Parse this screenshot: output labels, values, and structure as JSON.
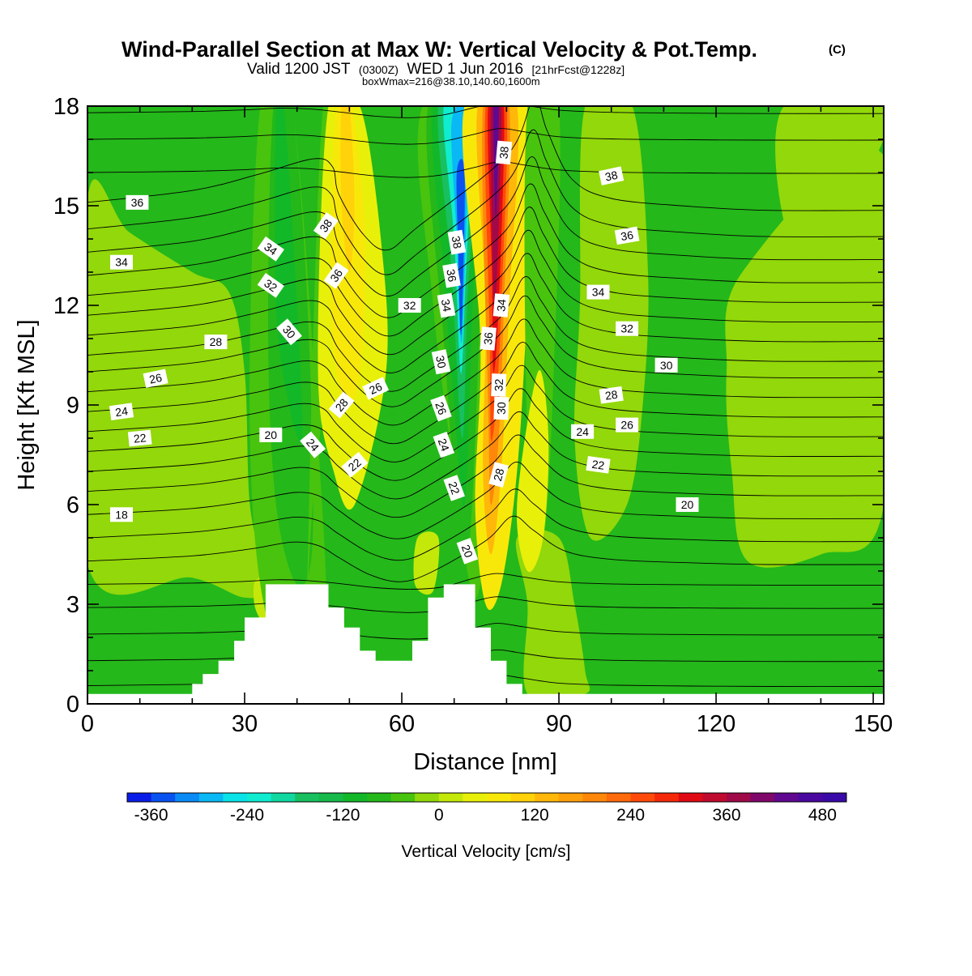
{
  "chart_data": {
    "type": "heatmap",
    "title": "Wind-Parallel Section at Max W: Vertical Velocity & Pot.Temp.",
    "title_mark": "(C)",
    "subtitle_parts": [
      "Valid 1200 JST",
      "(0300Z)",
      "WED 1 Jun 2016",
      "[21hrFcst@1228z]"
    ],
    "subtitle2": "boxWmax=216@38.10,140.60,1600m",
    "xlabel": "Distance [nm]",
    "ylabel": "Height [Kft MSL]",
    "xlim": [
      0,
      152
    ],
    "ylim": [
      0,
      18
    ],
    "x_ticks": [
      0,
      30,
      60,
      90,
      120,
      150
    ],
    "y_ticks": [
      0,
      3,
      6,
      9,
      12,
      15,
      18
    ],
    "colorbar": {
      "label": "Vertical Velocity [cm/s]",
      "tick_values": [
        -360,
        -240,
        -120,
        0,
        120,
        240,
        360,
        480
      ],
      "tick_labels": [
        "-360",
        "-240",
        "-120",
        "0",
        "120",
        "240",
        "360",
        "480"
      ],
      "levels": [
        -390,
        -360,
        -330,
        -300,
        -270,
        -240,
        -210,
        -180,
        -150,
        -120,
        -90,
        -60,
        -30,
        0,
        30,
        60,
        90,
        120,
        150,
        180,
        210,
        240,
        270,
        300,
        330,
        360,
        390,
        420,
        450,
        480,
        510
      ],
      "colors": [
        "#0a1de8",
        "#0a52f0",
        "#0a8af5",
        "#0ab8f5",
        "#0ae3e8",
        "#10ecd0",
        "#10d8a0",
        "#18c060",
        "#16b94a",
        "#12b828",
        "#24b81a",
        "#48c40e",
        "#92d80a",
        "#c4e80a",
        "#e8f00a",
        "#f8e80a",
        "#ffd20a",
        "#ffb80a",
        "#ff9f0a",
        "#ff870a",
        "#ff6a0a",
        "#ff4a0a",
        "#f5280a",
        "#e00a14",
        "#c00a30",
        "#a00a48",
        "#80086a",
        "#600890",
        "#4a08a0",
        "#3a0aa8"
      ]
    },
    "terrain_kft": [
      [
        0,
        0.3
      ],
      [
        20,
        0.3
      ],
      [
        20,
        0.6
      ],
      [
        22,
        0.6
      ],
      [
        22,
        0.9
      ],
      [
        25,
        0.9
      ],
      [
        25,
        1.3
      ],
      [
        28,
        1.3
      ],
      [
        28,
        1.9
      ],
      [
        30,
        1.9
      ],
      [
        30,
        2.6
      ],
      [
        34,
        2.6
      ],
      [
        34,
        3.6
      ],
      [
        46,
        3.6
      ],
      [
        46,
        2.9
      ],
      [
        49,
        2.9
      ],
      [
        49,
        2.3
      ],
      [
        52,
        2.3
      ],
      [
        52,
        1.6
      ],
      [
        55,
        1.6
      ],
      [
        55,
        1.3
      ],
      [
        62,
        1.3
      ],
      [
        62,
        1.9
      ],
      [
        65,
        1.9
      ],
      [
        65,
        3.2
      ],
      [
        68,
        3.2
      ],
      [
        68,
        3.6
      ],
      [
        74,
        3.6
      ],
      [
        74,
        2.3
      ],
      [
        77,
        2.3
      ],
      [
        77,
        1.3
      ],
      [
        80,
        1.3
      ],
      [
        80,
        0.6
      ],
      [
        83,
        0.6
      ],
      [
        83,
        0.3
      ],
      [
        152,
        0.3
      ]
    ],
    "ww_bands": [
      {
        "level": "-60",
        "points": [
          [
            33,
            18
          ],
          [
            39,
            18
          ],
          [
            44,
            8
          ],
          [
            45,
            1.6
          ],
          [
            35,
            2.2
          ],
          [
            31,
            8
          ]
        ]
      },
      {
        "level": "-90",
        "points": [
          [
            35.5,
            18
          ],
          [
            39,
            18
          ],
          [
            42,
            12
          ],
          [
            43,
            5
          ],
          [
            40,
            3.6
          ],
          [
            36,
            6
          ],
          [
            34.5,
            11
          ]
        ]
      },
      {
        "level": "-120",
        "points": [
          [
            36,
            18
          ],
          [
            37.5,
            18
          ],
          [
            40,
            12
          ],
          [
            41,
            8
          ],
          [
            38.5,
            9
          ],
          [
            36,
            12
          ]
        ]
      },
      {
        "level": "-60",
        "points": [
          [
            45,
            18
          ],
          [
            51,
            18
          ],
          [
            47,
            12
          ],
          [
            45,
            9
          ],
          [
            43,
            6
          ],
          [
            42,
            4
          ]
        ]
      },
      {
        "level": "30",
        "points": [
          [
            46,
            18
          ],
          [
            52,
            18
          ],
          [
            56,
            14
          ],
          [
            57,
            10
          ],
          [
            51,
            6
          ],
          [
            47,
            7
          ],
          [
            44,
            10
          ]
        ]
      },
      {
        "level": "60",
        "points": [
          [
            47.5,
            18
          ],
          [
            50.5,
            18
          ],
          [
            53,
            14
          ],
          [
            52,
            10
          ],
          [
            49,
            9
          ],
          [
            46.5,
            12
          ]
        ]
      },
      {
        "level": "90",
        "points": [
          [
            48.5,
            18
          ],
          [
            50,
            18
          ],
          [
            51,
            15
          ],
          [
            50,
            13
          ],
          [
            48.5,
            15
          ]
        ]
      },
      {
        "level": "-60",
        "points": [
          [
            64,
            18
          ],
          [
            82,
            18
          ],
          [
            79,
            12
          ],
          [
            77,
            7
          ],
          [
            75,
            3.6
          ],
          [
            73,
            3.6
          ],
          [
            70,
            7
          ],
          [
            66,
            12
          ]
        ]
      },
      {
        "level": "-90",
        "points": [
          [
            65,
            18
          ],
          [
            76,
            18
          ],
          [
            75,
            12
          ],
          [
            73,
            5
          ],
          [
            71,
            5
          ],
          [
            68,
            11
          ]
        ]
      },
      {
        "level": "-120",
        "points": [
          [
            66,
            18
          ],
          [
            75,
            18
          ],
          [
            73.5,
            12
          ],
          [
            72,
            6
          ],
          [
            70,
            9
          ],
          [
            68,
            13
          ]
        ]
      },
      {
        "level": "-180",
        "points": [
          [
            67,
            18
          ],
          [
            74,
            18
          ],
          [
            72.5,
            12
          ],
          [
            71.5,
            8
          ],
          [
            69.5,
            13
          ]
        ]
      },
      {
        "level": "-240",
        "points": [
          [
            68,
            18
          ],
          [
            73,
            18
          ],
          [
            72,
            12
          ],
          [
            71.2,
            10
          ],
          [
            70,
            14
          ]
        ]
      },
      {
        "level": "-300",
        "points": [
          [
            69.5,
            17.5
          ],
          [
            72.5,
            17.5
          ],
          [
            71.8,
            12
          ],
          [
            71.2,
            11
          ],
          [
            70.5,
            14
          ]
        ]
      },
      {
        "level": "-360",
        "points": [
          [
            70.5,
            16
          ],
          [
            72,
            16
          ],
          [
            71.6,
            12
          ],
          [
            71.2,
            11.2
          ],
          [
            70.8,
            13.5
          ]
        ]
      },
      {
        "level": "60",
        "points": [
          [
            72,
            18
          ],
          [
            86,
            18
          ],
          [
            84,
            12
          ],
          [
            82,
            7
          ],
          [
            79,
            3.6
          ],
          [
            76,
            3
          ],
          [
            74,
            6
          ],
          [
            75,
            11
          ]
        ]
      },
      {
        "level": "120",
        "points": [
          [
            74.5,
            18
          ],
          [
            82,
            18
          ],
          [
            80.5,
            12
          ],
          [
            79,
            7
          ],
          [
            77,
            4.5
          ],
          [
            75.5,
            7
          ],
          [
            76,
            12
          ]
        ]
      },
      {
        "level": "180",
        "points": [
          [
            75.5,
            18
          ],
          [
            80.5,
            18
          ],
          [
            79.5,
            12
          ],
          [
            78.5,
            8
          ],
          [
            77,
            6
          ],
          [
            76.5,
            9
          ]
        ]
      },
      {
        "level": "240",
        "points": [
          [
            76,
            18
          ],
          [
            80,
            18
          ],
          [
            79,
            12
          ],
          [
            78,
            9
          ],
          [
            77,
            8
          ],
          [
            76.8,
            11
          ]
        ]
      },
      {
        "level": "300",
        "points": [
          [
            76.5,
            18
          ],
          [
            79.5,
            18
          ],
          [
            78.5,
            12
          ],
          [
            77.5,
            10
          ],
          [
            77.2,
            13
          ]
        ]
      },
      {
        "level": "360",
        "points": [
          [
            77,
            18
          ],
          [
            79,
            18
          ],
          [
            78.2,
            13
          ],
          [
            77.6,
            12
          ]
        ]
      },
      {
        "level": "420",
        "points": [
          [
            77.5,
            18
          ],
          [
            78.5,
            18
          ],
          [
            78.1,
            15
          ],
          [
            77.8,
            15
          ]
        ]
      },
      {
        "level": "-60",
        "points": [
          [
            84,
            18
          ],
          [
            90,
            18
          ],
          [
            89,
            10
          ],
          [
            87,
            5
          ],
          [
            84,
            8
          ]
        ]
      },
      {
        "level": "-30",
        "points": [
          [
            82,
            5
          ],
          [
            90,
            5
          ],
          [
            93,
            3
          ],
          [
            95,
            1
          ],
          [
            95,
            0.3
          ],
          [
            84,
            0.3
          ],
          [
            84,
            3
          ]
        ]
      },
      {
        "level": "30",
        "points": [
          [
            82,
            6
          ],
          [
            86,
            10
          ],
          [
            88,
            8
          ],
          [
            87,
            5
          ],
          [
            84,
            4
          ]
        ]
      }
    ],
    "theta_labels": [
      {
        "text": "36",
        "x": 9.5,
        "y": 15.1,
        "r": 0
      },
      {
        "text": "34",
        "x": 6.5,
        "y": 13.3,
        "r": 0
      },
      {
        "text": "28",
        "x": 24.5,
        "y": 10.9,
        "r": 0
      },
      {
        "text": "26",
        "x": 13,
        "y": 9.8,
        "r": -12
      },
      {
        "text": "24",
        "x": 6.5,
        "y": 8.8,
        "r": -8
      },
      {
        "text": "22",
        "x": 10,
        "y": 8.0,
        "r": -6
      },
      {
        "text": "18",
        "x": 6.5,
        "y": 5.7,
        "r": 0
      },
      {
        "text": "20",
        "x": 35,
        "y": 8.1,
        "r": 0
      },
      {
        "text": "38",
        "x": 45.5,
        "y": 14.4,
        "r": -55
      },
      {
        "text": "34",
        "x": 35,
        "y": 13.7,
        "r": 35
      },
      {
        "text": "32",
        "x": 35,
        "y": 12.6,
        "r": 35
      },
      {
        "text": "36",
        "x": 47.5,
        "y": 12.9,
        "r": -55
      },
      {
        "text": "30",
        "x": 38.5,
        "y": 11.2,
        "r": 50
      },
      {
        "text": "28",
        "x": 48.5,
        "y": 9.0,
        "r": -50
      },
      {
        "text": "26",
        "x": 55,
        "y": 9.5,
        "r": -25
      },
      {
        "text": "24",
        "x": 43,
        "y": 7.8,
        "r": 50
      },
      {
        "text": "22",
        "x": 51,
        "y": 7.2,
        "r": -40
      },
      {
        "text": "32",
        "x": 61.5,
        "y": 12.0,
        "r": 0
      },
      {
        "text": "38",
        "x": 70.5,
        "y": 13.9,
        "r": 80
      },
      {
        "text": "36",
        "x": 69.5,
        "y": 12.9,
        "r": 80
      },
      {
        "text": "34",
        "x": 68.5,
        "y": 12.0,
        "r": 80
      },
      {
        "text": "30",
        "x": 67.5,
        "y": 10.3,
        "r": 78
      },
      {
        "text": "26",
        "x": 67.5,
        "y": 8.9,
        "r": 70
      },
      {
        "text": "24",
        "x": 68,
        "y": 7.8,
        "r": 70
      },
      {
        "text": "22",
        "x": 70,
        "y": 6.5,
        "r": 70
      },
      {
        "text": "20",
        "x": 72.5,
        "y": 4.6,
        "r": 70
      },
      {
        "text": "38",
        "x": 79.5,
        "y": 16.6,
        "r": -85
      },
      {
        "text": "34",
        "x": 79,
        "y": 12.0,
        "r": -85
      },
      {
        "text": "36",
        "x": 76.5,
        "y": 11.0,
        "r": -85
      },
      {
        "text": "32",
        "x": 78.5,
        "y": 9.6,
        "r": -88
      },
      {
        "text": "30",
        "x": 79,
        "y": 8.9,
        "r": -88
      },
      {
        "text": "28",
        "x": 78.5,
        "y": 6.9,
        "r": -75
      },
      {
        "text": "38",
        "x": 100,
        "y": 15.9,
        "r": -12
      },
      {
        "text": "36",
        "x": 103,
        "y": 14.1,
        "r": -10
      },
      {
        "text": "34",
        "x": 97.5,
        "y": 12.4,
        "r": 0
      },
      {
        "text": "32",
        "x": 103,
        "y": 11.3,
        "r": 0
      },
      {
        "text": "30",
        "x": 110.5,
        "y": 10.2,
        "r": 0
      },
      {
        "text": "28",
        "x": 100,
        "y": 9.3,
        "r": -8
      },
      {
        "text": "26",
        "x": 103,
        "y": 8.4,
        "r": 0
      },
      {
        "text": "24",
        "x": 94.5,
        "y": 8.2,
        "r": 0
      },
      {
        "text": "22",
        "x": 97.5,
        "y": 7.2,
        "r": 8
      },
      {
        "text": "20",
        "x": 114.5,
        "y": 6.0,
        "r": 0
      }
    ]
  }
}
